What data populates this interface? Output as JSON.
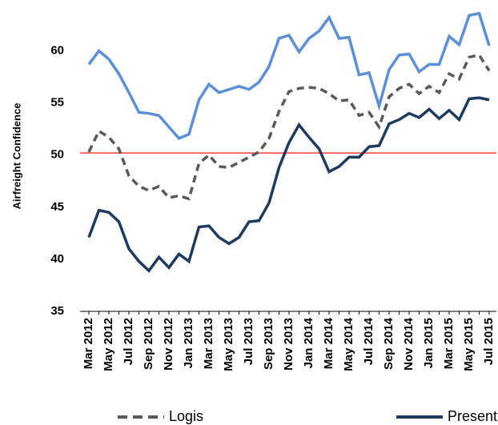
{
  "chart_data": {
    "type": "line",
    "y_label": "Airfreight Confidence",
    "categories": [
      "Mar 2012",
      null,
      "May 2012",
      null,
      "Jul 2012",
      null,
      "Sep 2012",
      null,
      "Nov 2012",
      null,
      "Jan 2013",
      null,
      "Mar 2013",
      null,
      "May 2013",
      null,
      "Jul 2013",
      null,
      "Sep 2013",
      null,
      "Nov 2013",
      null,
      "Jan 2014",
      null,
      "Mar 2014",
      null,
      "May 2014",
      null,
      "Jul 2014",
      null,
      "Sep 2014",
      null,
      "Nov 2014",
      null,
      "Jan 2015",
      null,
      "Mar 2015",
      null,
      "May 2015",
      null,
      "Jul 2015"
    ],
    "series": [
      {
        "color": "#5b8fd6",
        "dashed": false,
        "values": [
          58.7,
          60,
          59.2,
          57.8,
          56,
          54.1,
          54,
          53.8,
          52.7,
          51.6,
          52,
          55.3,
          56.8,
          56,
          56.3,
          56.6,
          56.3,
          57,
          58.5,
          61.2,
          61.5,
          59.9,
          61.2,
          61.9,
          63.2,
          61.2,
          61.3,
          57.7,
          57.9,
          54.7,
          58.2,
          59.6,
          59.7,
          58,
          58.7,
          58.7,
          61.4,
          60.6,
          63.4,
          63.6,
          60.5
        ]
      },
      {
        "name": "Logis",
        "color": "#595959",
        "dashed": true,
        "values": [
          50.3,
          52.3,
          51.7,
          50.6,
          48,
          47,
          46.6,
          47,
          45.9,
          46.1,
          45.8,
          49.2,
          50,
          48.9,
          48.8,
          49.3,
          49.8,
          50.3,
          51.6,
          54.2,
          56.1,
          56.4,
          56.5,
          56.4,
          55.9,
          55.2,
          55.3,
          53.8,
          54.1,
          52.7,
          55.6,
          56.4,
          56.8,
          55.9,
          56.6,
          56,
          57.8,
          57.3,
          59.4,
          59.6,
          58.1
        ]
      },
      {
        "name": "Present Situation",
        "color": "#1f3a5f",
        "dashed": false,
        "values": [
          42.1,
          44.7,
          44.5,
          43.6,
          41,
          39.8,
          38.9,
          40.2,
          39.2,
          40.5,
          39.8,
          43.1,
          43.2,
          42.1,
          41.5,
          42.1,
          43.6,
          43.7,
          45.4,
          48.8,
          51.2,
          52.9,
          51.7,
          50.6,
          48.4,
          48.9,
          49.8,
          49.8,
          50.8,
          50.9,
          53,
          53.4,
          54,
          53.6,
          54.4,
          53.5,
          54.3,
          53.4,
          55.4,
          55.5,
          55.3
        ]
      }
    ],
    "reference_line": {
      "value": 50.2,
      "color": "#ff3b3b"
    },
    "ylim": [
      35,
      64.5
    ],
    "yticks": [
      35,
      40,
      45,
      50,
      55,
      60
    ],
    "grid": false
  }
}
